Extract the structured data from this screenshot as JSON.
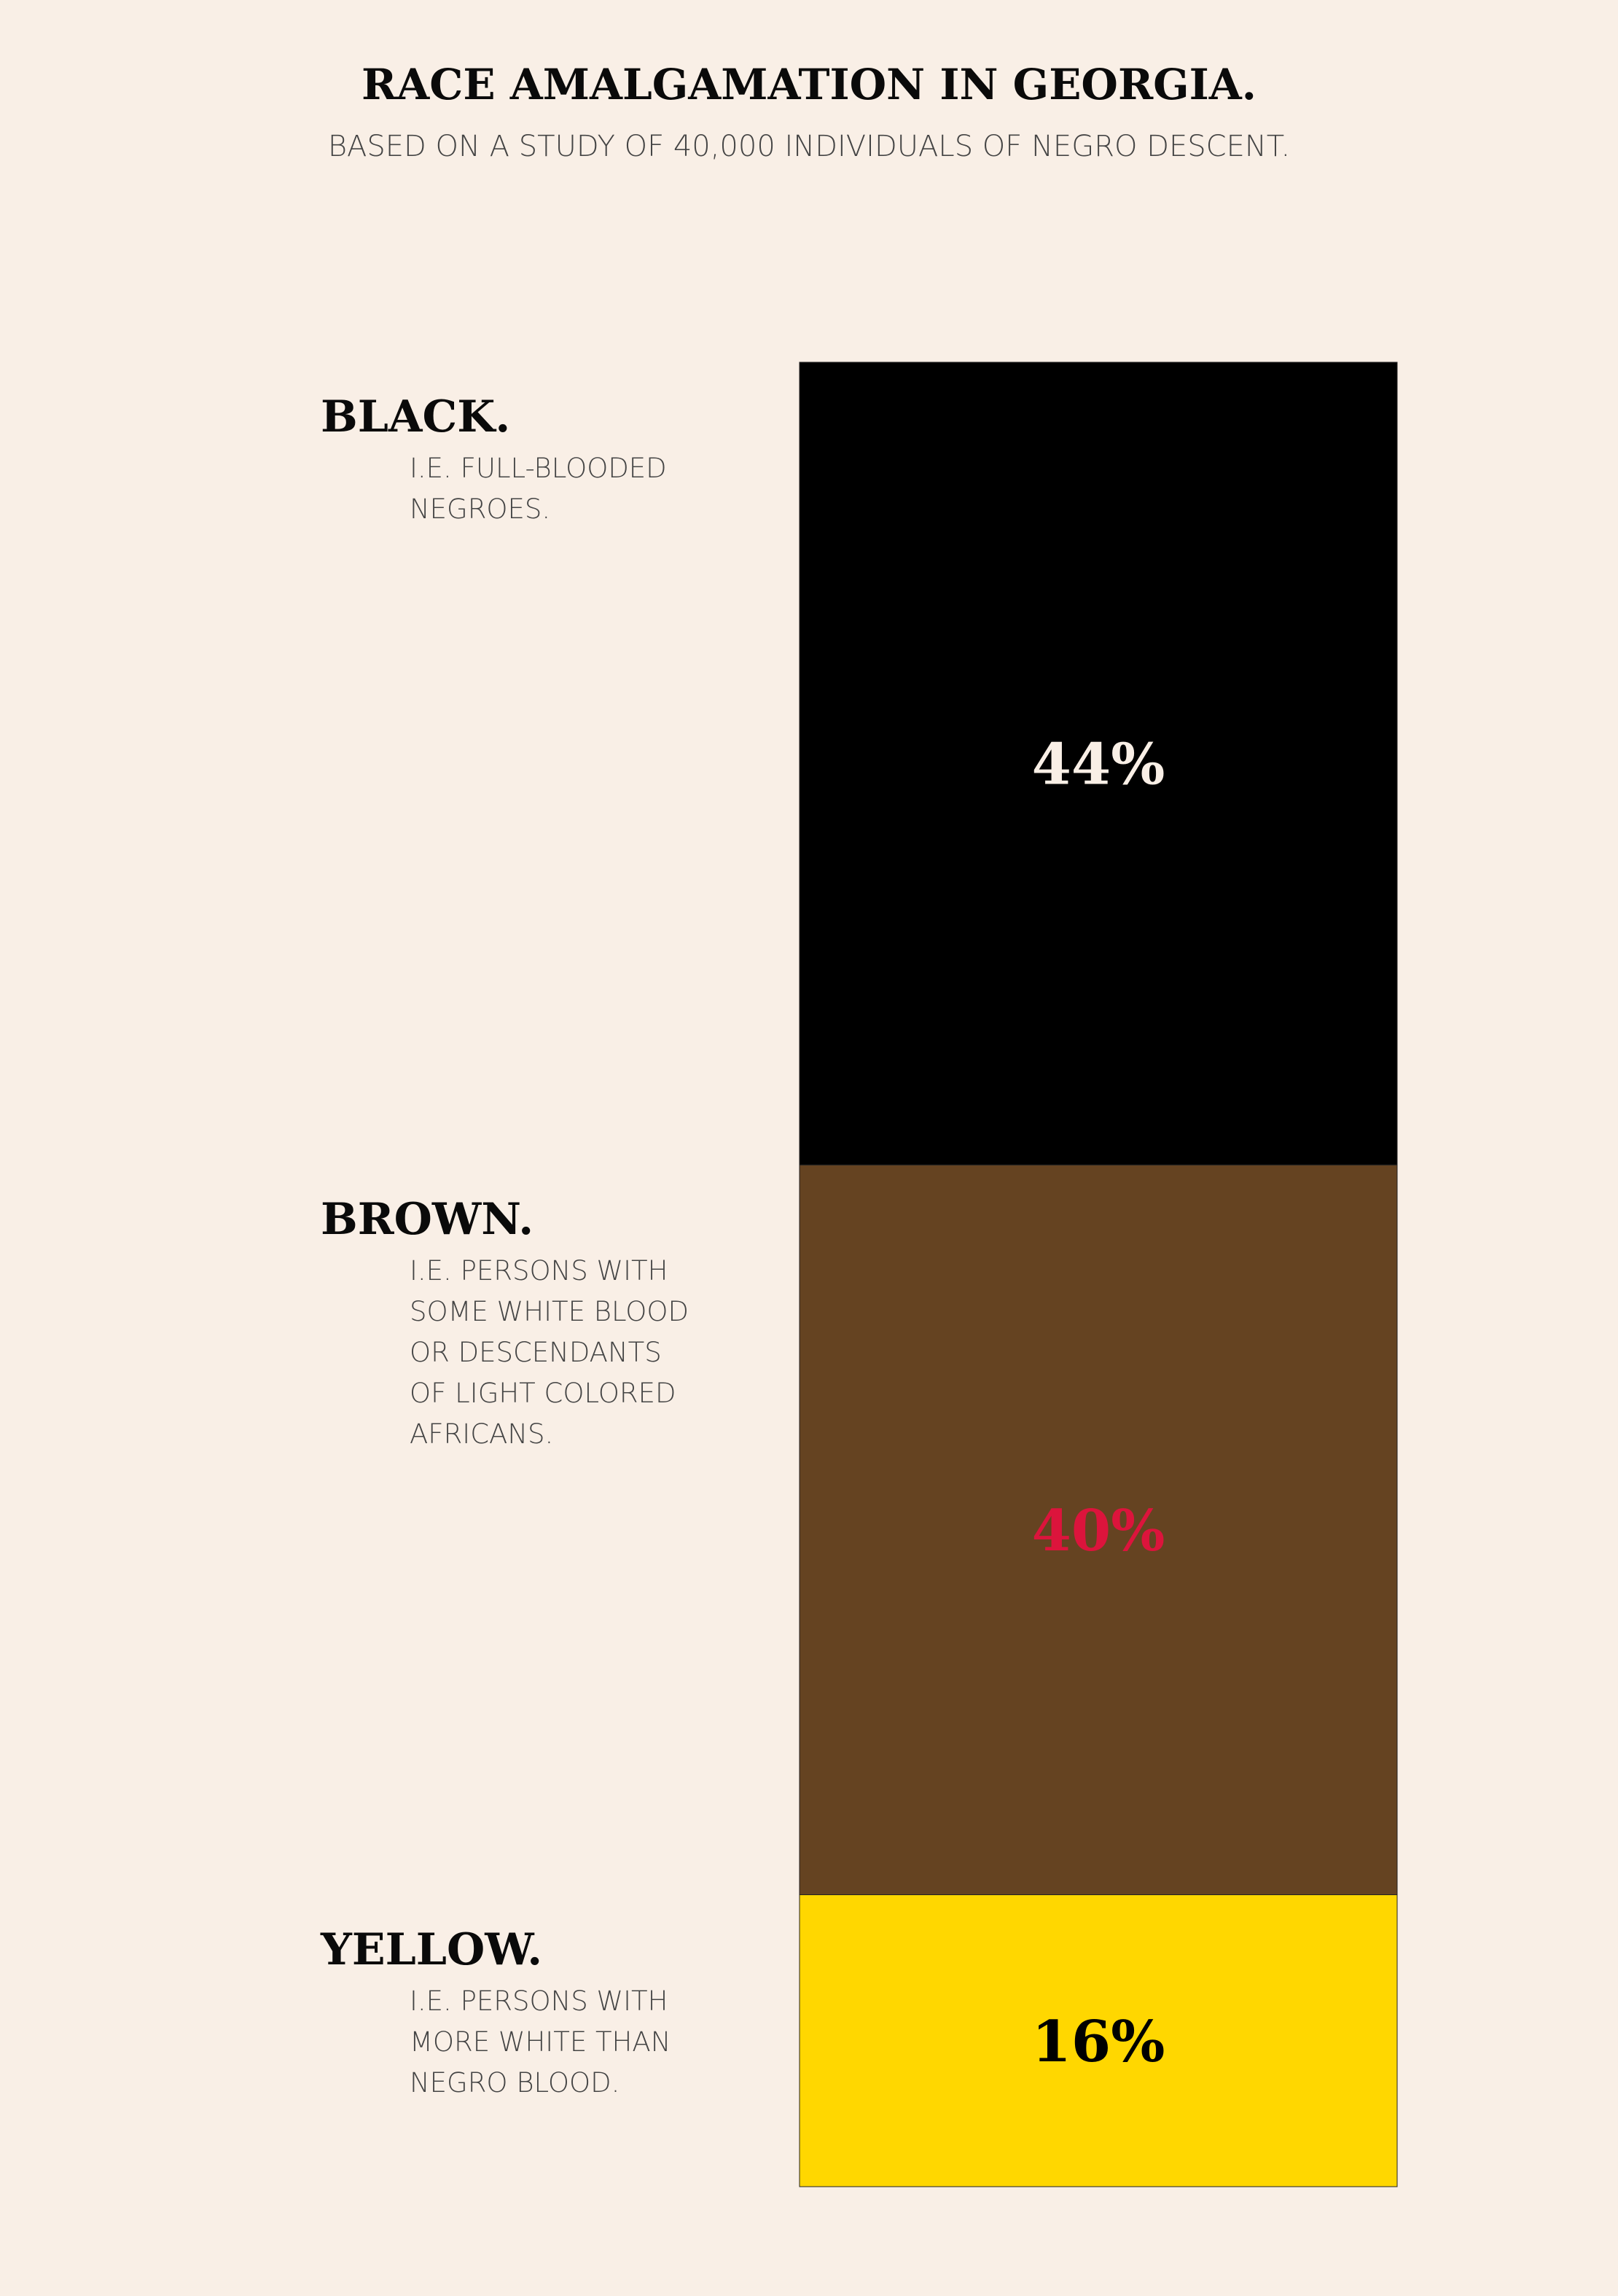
{
  "title": "RACE AMALGAMATION IN GEORGIA.",
  "subtitle": "BASED ON A STUDY OF 40,000 INDIVIDUALS OF NEGRO DESCENT.",
  "chart_data": {
    "type": "bar",
    "stacked": true,
    "orientation": "vertical",
    "categories": [
      "BLACK.",
      "BROWN.",
      "YELLOW."
    ],
    "descriptions": [
      [
        "I.E. FULL-BLOODED",
        "NEGROES."
      ],
      [
        "I.E. PERSONS WITH",
        "SOME WHITE BLOOD",
        "OR DESCENDANTS",
        "OF LIGHT COLORED",
        "AFRICANS."
      ],
      [
        "I.E. PERSONS WITH",
        "MORE WHITE THAN",
        "NEGRO BLOOD."
      ]
    ],
    "values": [
      44,
      40,
      16
    ],
    "value_labels": [
      "44%",
      "40%",
      "16%"
    ],
    "colors": [
      "#000000",
      "#654321",
      "#ffd700"
    ],
    "label_colors": [
      "#f9efe6",
      "#dc143c",
      "#000000"
    ],
    "total": 100
  }
}
